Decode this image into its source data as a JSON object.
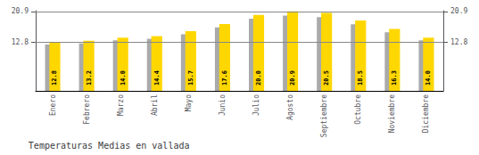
{
  "chart_data": {
    "type": "bar",
    "title": "Temperaturas Medias en vallada",
    "categories": [
      "Enero",
      "Febrero",
      "Marzo",
      "Abril",
      "Mayo",
      "Junio",
      "Julio",
      "Agosto",
      "Septiembre",
      "Octubre",
      "Noviembre",
      "Diciembre"
    ],
    "series": [
      {
        "color": "#AAAAAA",
        "values": [
          12.2,
          12.5,
          13.3,
          13.7,
          14.9,
          16.7,
          19.0,
          19.8,
          19.4,
          17.5,
          15.4,
          13.3
        ]
      },
      {
        "color": "#FFD700",
        "values": [
          12.8,
          13.2,
          14.0,
          14.4,
          15.7,
          17.6,
          20.0,
          20.9,
          20.5,
          18.5,
          16.3,
          14.0
        ],
        "value_labels": [
          "12.8",
          "13.2",
          "14.0",
          "14.4",
          "15.7",
          "17.6",
          "20.0",
          "20.9",
          "20.5",
          "18.5",
          "16.3",
          "14.0"
        ],
        "data_labels": true
      }
    ],
    "ylim": [
      0,
      21.1
    ],
    "yticks": [
      12.8,
      20.9
    ],
    "y2lim": [
      0,
      21.1
    ],
    "y2ticks": [
      12.8,
      20.9
    ],
    "grid": true
  }
}
